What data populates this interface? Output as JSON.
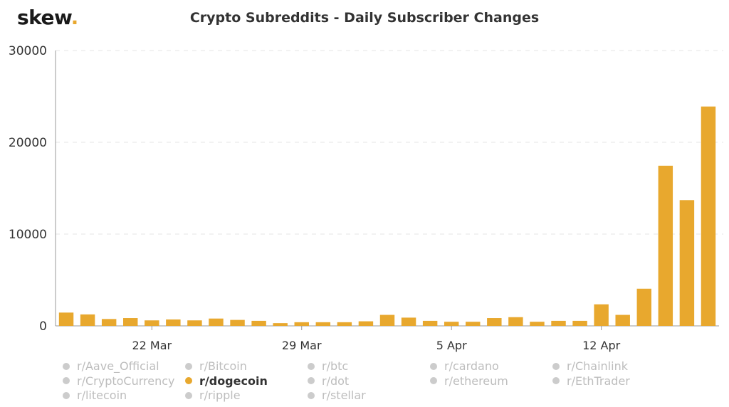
{
  "header": {
    "logo_text": "skew",
    "logo_dot": "."
  },
  "chart_data": {
    "type": "bar",
    "title": "Crypto Subreddits - Daily Subscriber Changes",
    "x": [
      "2021-03-18",
      "2021-03-19",
      "2021-03-20",
      "2021-03-21",
      "2021-03-22",
      "2021-03-23",
      "2021-03-24",
      "2021-03-25",
      "2021-03-26",
      "2021-03-27",
      "2021-03-28",
      "2021-03-29",
      "2021-03-30",
      "2021-03-31",
      "2021-04-01",
      "2021-04-02",
      "2021-04-03",
      "2021-04-04",
      "2021-04-05",
      "2021-04-06",
      "2021-04-07",
      "2021-04-08",
      "2021-04-09",
      "2021-04-10",
      "2021-04-11",
      "2021-04-12",
      "2021-04-13",
      "2021-04-14",
      "2021-04-15",
      "2021-04-16",
      "2021-04-17"
    ],
    "series": [
      {
        "name": "r/dogecoin",
        "color": "#e8a82e",
        "values": [
          1450,
          1250,
          750,
          850,
          600,
          700,
          600,
          800,
          650,
          550,
          300,
          400,
          400,
          400,
          500,
          1200,
          900,
          550,
          450,
          450,
          850,
          950,
          450,
          550,
          550,
          2350,
          1200,
          4050,
          17450,
          13700,
          23900
        ]
      }
    ],
    "xticks": [
      {
        "date": "2021-03-22",
        "label": "22 Mar"
      },
      {
        "date": "2021-03-29",
        "label": "29 Mar"
      },
      {
        "date": "2021-04-05",
        "label": "5 Apr"
      },
      {
        "date": "2021-04-12",
        "label": "12 Apr"
      }
    ],
    "yticks": [
      0,
      10000,
      20000,
      30000
    ],
    "ylim": [
      0,
      30000
    ],
    "grid": true,
    "legend_position": "bottom"
  },
  "legend": [
    {
      "label": "r/Aave_Official",
      "active": false
    },
    {
      "label": "r/Bitcoin",
      "active": false
    },
    {
      "label": "r/btc",
      "active": false
    },
    {
      "label": "r/cardano",
      "active": false
    },
    {
      "label": "r/Chainlink",
      "active": false
    },
    {
      "label": "r/CryptoCurrency",
      "active": false
    },
    {
      "label": "r/dogecoin",
      "active": true
    },
    {
      "label": "r/dot",
      "active": false
    },
    {
      "label": "r/ethereum",
      "active": false
    },
    {
      "label": "r/EthTrader",
      "active": false
    },
    {
      "label": "r/litecoin",
      "active": false
    },
    {
      "label": "r/ripple",
      "active": false
    },
    {
      "label": "r/stellar",
      "active": false
    }
  ]
}
